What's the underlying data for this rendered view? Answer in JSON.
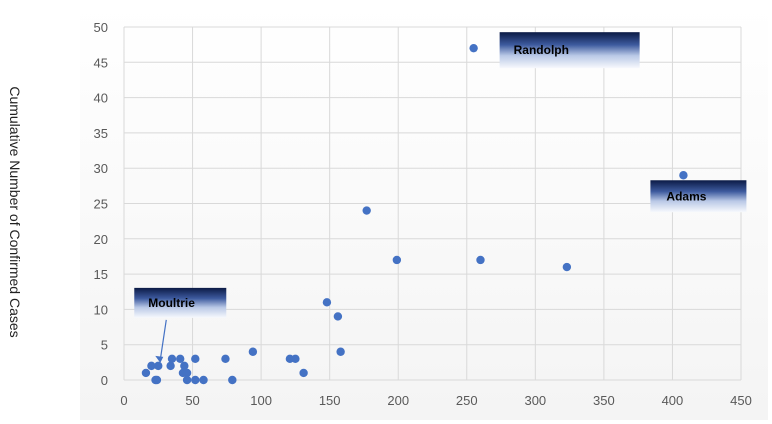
{
  "chart_data": {
    "type": "scatter",
    "title": "",
    "xlabel": "",
    "ylabel": "Cumulative Number of Confirmed Cases",
    "xlim": [
      0,
      450
    ],
    "ylim": [
      0,
      50
    ],
    "xticks": [
      0,
      50,
      100,
      150,
      200,
      250,
      300,
      350,
      400,
      450
    ],
    "yticks": [
      0,
      5,
      10,
      15,
      20,
      25,
      30,
      35,
      40,
      45,
      50
    ],
    "grid": "both",
    "legend": "none",
    "marker_color": "#4472c4",
    "points": [
      {
        "x": 16,
        "y": 1
      },
      {
        "x": 20,
        "y": 2
      },
      {
        "x": 23,
        "y": 0
      },
      {
        "x": 24,
        "y": 0
      },
      {
        "x": 25,
        "y": 2
      },
      {
        "x": 34,
        "y": 2
      },
      {
        "x": 35,
        "y": 3
      },
      {
        "x": 41,
        "y": 3
      },
      {
        "x": 43,
        "y": 1
      },
      {
        "x": 44,
        "y": 2
      },
      {
        "x": 46,
        "y": 1
      },
      {
        "x": 46,
        "y": 0
      },
      {
        "x": 52,
        "y": 3
      },
      {
        "x": 52,
        "y": 0
      },
      {
        "x": 58,
        "y": 0
      },
      {
        "x": 74,
        "y": 3
      },
      {
        "x": 79,
        "y": 0
      },
      {
        "x": 94,
        "y": 4
      },
      {
        "x": 121,
        "y": 3
      },
      {
        "x": 125,
        "y": 3
      },
      {
        "x": 131,
        "y": 1
      },
      {
        "x": 148,
        "y": 11
      },
      {
        "x": 156,
        "y": 9
      },
      {
        "x": 158,
        "y": 4
      },
      {
        "x": 177,
        "y": 24
      },
      {
        "x": 199,
        "y": 17
      },
      {
        "x": 255,
        "y": 47
      },
      {
        "x": 260,
        "y": 17
      },
      {
        "x": 323,
        "y": 16
      },
      {
        "x": 408,
        "y": 29
      }
    ],
    "annotations": [
      {
        "text": "Randolph",
        "x": 255,
        "y": 47
      },
      {
        "text": "Adams",
        "x": 408,
        "y": 29
      },
      {
        "text": "Moultrie",
        "x": 25,
        "y": 2
      }
    ]
  }
}
